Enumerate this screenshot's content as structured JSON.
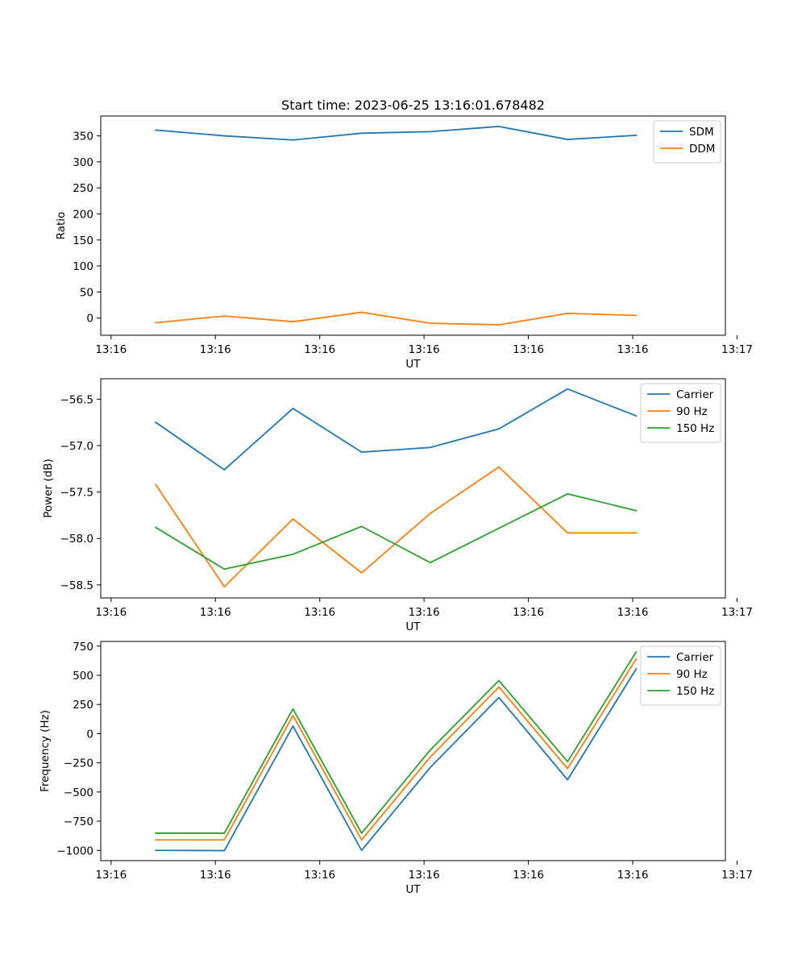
{
  "chart_data": [
    {
      "type": "line",
      "title": "Start time: 2023-06-25 13:16:01.678482",
      "xlabel": "UT",
      "ylabel": "Ratio",
      "x_tick_labels": [
        "13:16",
        "13:16",
        "13:16",
        "13:16",
        "13:16",
        "13:16",
        "13:17"
      ],
      "x": [
        1,
        2,
        3,
        4,
        5,
        6,
        7,
        8
      ],
      "xlim": [
        0.2,
        9.3
      ],
      "ylim": [
        -33,
        388
      ],
      "y_ticks": [
        0,
        50,
        100,
        150,
        200,
        250,
        300,
        350
      ],
      "legend_position": "top-right",
      "grid": false,
      "series": [
        {
          "name": "SDM",
          "color": "#1f77b4",
          "values": [
            361,
            350,
            342,
            355,
            358,
            368,
            343,
            351
          ]
        },
        {
          "name": "DDM",
          "color": "#ff7f0e",
          "values": [
            -9,
            4,
            -7,
            11,
            -10,
            -13,
            9,
            5
          ]
        }
      ]
    },
    {
      "type": "line",
      "title": "",
      "xlabel": "UT",
      "ylabel": "Power (dB)",
      "x_tick_labels": [
        "13:16",
        "13:16",
        "13:16",
        "13:16",
        "13:16",
        "13:16",
        "13:17"
      ],
      "x": [
        1,
        2,
        3,
        4,
        5,
        6,
        7,
        8
      ],
      "xlim": [
        0.2,
        9.3
      ],
      "ylim": [
        -58.64,
        -56.28
      ],
      "y_ticks": [
        -58.5,
        -58.0,
        -57.5,
        -57.0,
        -56.5
      ],
      "y_tick_labels": [
        "−58.5",
        "−58.0",
        "−57.5",
        "−57.0",
        "−56.5"
      ],
      "legend_position": "top-right",
      "grid": false,
      "series": [
        {
          "name": "Carrier",
          "color": "#1f77b4",
          "values": [
            -56.75,
            -57.26,
            -56.6,
            -57.07,
            -57.02,
            -56.82,
            -56.39,
            -56.68
          ]
        },
        {
          "name": "90 Hz",
          "color": "#ff7f0e",
          "values": [
            -57.42,
            -58.52,
            -57.79,
            -58.37,
            -57.73,
            -57.23,
            -57.94,
            -57.94
          ]
        },
        {
          "name": "150 Hz",
          "color": "#2ca02c",
          "values": [
            -57.88,
            -58.33,
            -58.17,
            -57.87,
            -58.26,
            -57.89,
            -57.52,
            -57.7
          ]
        }
      ]
    },
    {
      "type": "line",
      "title": "",
      "xlabel": "UT",
      "ylabel": "Frequency (Hz)",
      "x_tick_labels": [
        "13:16",
        "13:16",
        "13:16",
        "13:16",
        "13:16",
        "13:16",
        "13:17"
      ],
      "x": [
        1,
        2,
        3,
        4,
        5,
        6,
        7,
        8
      ],
      "xlim": [
        0.2,
        9.3
      ],
      "ylim": [
        -1088,
        790
      ],
      "y_ticks": [
        -1000,
        -750,
        -500,
        -250,
        0,
        250,
        500,
        750
      ],
      "y_tick_labels": [
        "−1000",
        "−750",
        "−500",
        "−250",
        "0",
        "250",
        "500",
        "750"
      ],
      "legend_position": "top-right",
      "grid": false,
      "series": [
        {
          "name": "Carrier",
          "color": "#1f77b4",
          "values": [
            -1000,
            -1002,
            65,
            -1000,
            -290,
            310,
            -395,
            555
          ]
        },
        {
          "name": "90 Hz",
          "color": "#ff7f0e",
          "values": [
            -910,
            -910,
            155,
            -910,
            -200,
            400,
            -300,
            640
          ]
        },
        {
          "name": "150 Hz",
          "color": "#2ca02c",
          "values": [
            -853,
            -853,
            212,
            -853,
            -140,
            455,
            -240,
            700
          ]
        }
      ]
    }
  ]
}
